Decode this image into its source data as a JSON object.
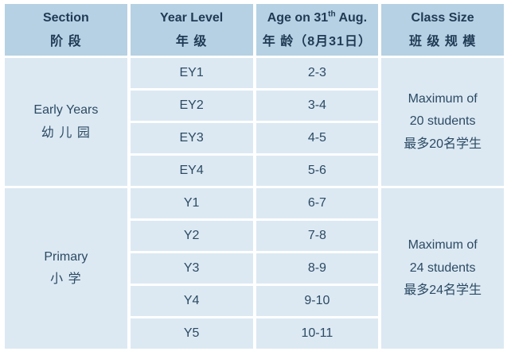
{
  "colors": {
    "header_bg": "#b6d1e3",
    "body_bg": "#dce9f3",
    "header_text": "#1f3a54",
    "body_text": "#2c4a63",
    "divider": "#ffffff"
  },
  "table": {
    "header": {
      "section": {
        "en": "Section",
        "zh": "阶 段"
      },
      "year_level": {
        "en": "Year Level",
        "zh": "年 级"
      },
      "age": {
        "en_pre": "Age on 31",
        "en_sup": "th",
        "en_post": " Aug.",
        "zh": "年 龄（8月31日）"
      },
      "class_size": {
        "en": "Class Size",
        "zh": "班 级 规 模"
      }
    },
    "sections": [
      {
        "name_en": "Early Years",
        "name_zh": "幼 儿 园",
        "class_size_lines": [
          "Maximum of",
          "20 students",
          "最多20名学生"
        ],
        "rows": [
          {
            "year": "EY1",
            "age": "2-3"
          },
          {
            "year": "EY2",
            "age": "3-4"
          },
          {
            "year": "EY3",
            "age": "4-5"
          },
          {
            "year": "EY4",
            "age": "5-6"
          }
        ]
      },
      {
        "name_en": "Primary",
        "name_zh": "小 学",
        "class_size_lines": [
          "Maximum of",
          "24 students",
          "最多24名学生"
        ],
        "rows": [
          {
            "year": "Y1",
            "age": "6-7"
          },
          {
            "year": "Y2",
            "age": "7-8"
          },
          {
            "year": "Y3",
            "age": "8-9"
          },
          {
            "year": "Y4",
            "age": "9-10"
          },
          {
            "year": "Y5",
            "age": "10-11"
          }
        ]
      }
    ]
  }
}
